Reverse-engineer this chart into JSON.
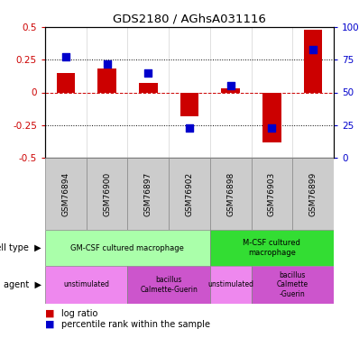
{
  "title": "GDS2180 / AGhsA031116",
  "samples": [
    "GSM76894",
    "GSM76900",
    "GSM76897",
    "GSM76902",
    "GSM76898",
    "GSM76903",
    "GSM76899"
  ],
  "log_ratio": [
    0.15,
    0.18,
    0.07,
    -0.18,
    0.03,
    -0.38,
    0.48
  ],
  "percentile_rank_pct": [
    77,
    72,
    65,
    23,
    55,
    23,
    83
  ],
  "bar_color": "#cc0000",
  "dot_color": "#0000cc",
  "ylim": [
    -0.5,
    0.5
  ],
  "y2lim": [
    0,
    100
  ],
  "yticks": [
    -0.5,
    -0.25,
    0,
    0.25,
    0.5
  ],
  "y2ticks": [
    0,
    25,
    50,
    75,
    100
  ],
  "cell_type_groups": [
    {
      "label": "GM-CSF cultured macrophage",
      "start": 0,
      "end": 4,
      "color": "#aaffaa"
    },
    {
      "label": "M-CSF cultured\nmacrophage",
      "start": 4,
      "end": 7,
      "color": "#33dd33"
    }
  ],
  "agent_groups": [
    {
      "label": "unstimulated",
      "start": 0,
      "end": 2,
      "color": "#ee88ee"
    },
    {
      "label": "bacillus\nCalmette-Guerin",
      "start": 2,
      "end": 4,
      "color": "#cc55cc"
    },
    {
      "label": "unstimulated",
      "start": 4,
      "end": 5,
      "color": "#ee88ee"
    },
    {
      "label": "bacillus\nCalmette\n-Guerin",
      "start": 5,
      "end": 7,
      "color": "#cc55cc"
    }
  ],
  "bar_color_red": "#cc0000",
  "dot_color_blue": "#0000cc",
  "ylabel_left_color": "#cc0000",
  "ylabel_right_color": "#0000cc",
  "tick_bg_color": "#cccccc",
  "tick_edge_color": "#888888"
}
